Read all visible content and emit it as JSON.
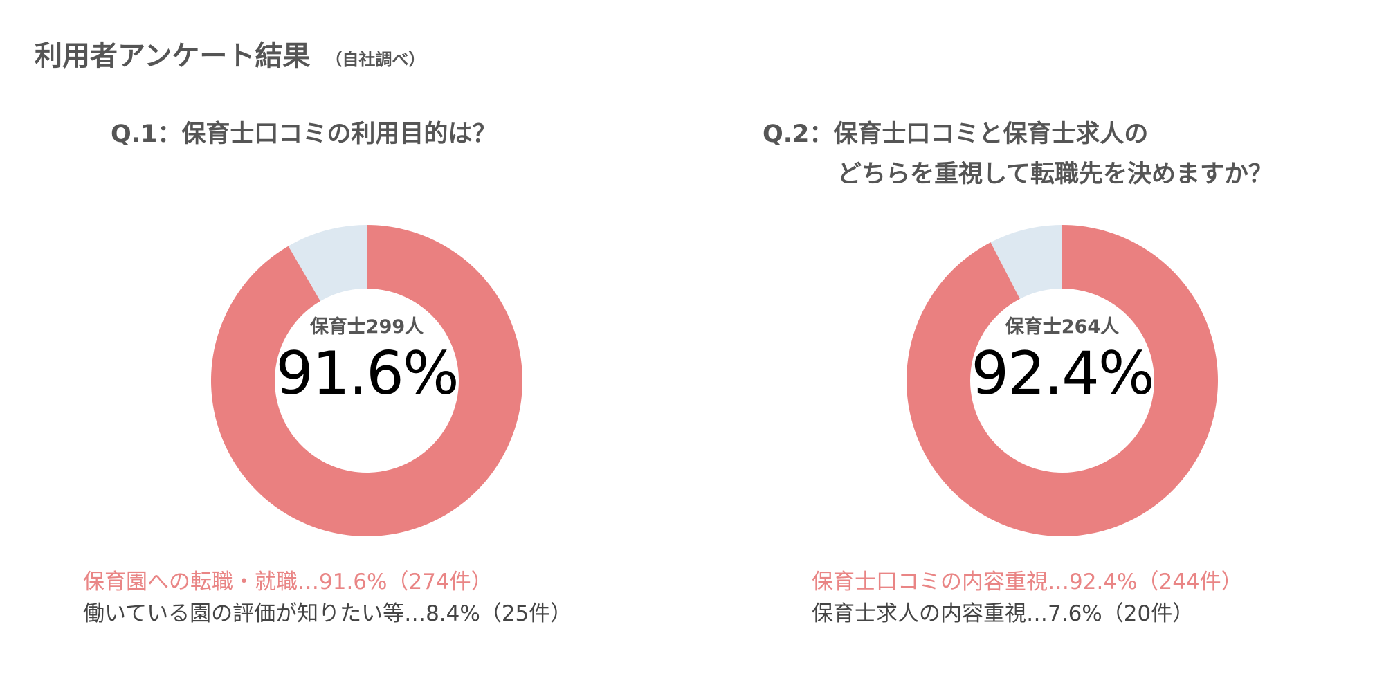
{
  "header": {
    "title": "利用者アンケート結果",
    "subtitle": "（自社調べ）"
  },
  "colors": {
    "primary": "#ea8080",
    "secondary": "#dde8f1",
    "text": "#555555"
  },
  "chart_data": [
    {
      "type": "pie",
      "title": "Q.1：保育士口コミの利用目的は？",
      "categories": [
        "保育園への転職・就職",
        "働いている園の評価が知りたい等"
      ],
      "values": [
        91.6,
        8.4
      ],
      "counts": [
        274,
        25
      ],
      "center_label": "保育士299人",
      "center_value": "91.6%",
      "legend": [
        "保育園への転職・就職…91.6%（274件）",
        "働いている園の評価が知りたい等…8.4%（25件）"
      ]
    },
    {
      "type": "pie",
      "title": "Q.2：保育士口コミと保育士求人の",
      "title_line2": "どちらを重視して転職先を決めますか？",
      "categories": [
        "保育士口コミの内容重視",
        "保育士求人の内容重視"
      ],
      "values": [
        92.4,
        7.6
      ],
      "counts": [
        244,
        20
      ],
      "center_label": "保育士264人",
      "center_value": "92.4%",
      "legend": [
        "保育士口コミの内容重視…92.4%（244件）",
        "保育士求人の内容重視…7.6%（20件）"
      ]
    }
  ]
}
